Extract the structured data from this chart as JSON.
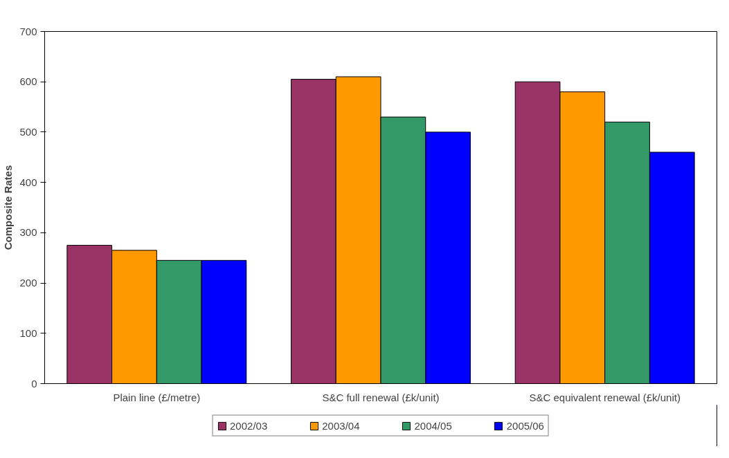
{
  "chart_data": {
    "type": "bar",
    "ylabel": "Composite Rates",
    "categories": [
      "Plain line (£/metre)",
      "S&C full renewal (£k/unit)",
      "S&C equivalent renewal (£k/unit)"
    ],
    "series": [
      {
        "name": "2002/03",
        "color": "#993366",
        "values": [
          275,
          605,
          600
        ]
      },
      {
        "name": "2003/04",
        "color": "#ff9900",
        "values": [
          265,
          610,
          580
        ]
      },
      {
        "name": "2004/05",
        "color": "#339966",
        "values": [
          245,
          530,
          520
        ]
      },
      {
        "name": "2005/06",
        "color": "#0000ff",
        "values": [
          245,
          500,
          460
        ]
      }
    ],
    "ylim": [
      0,
      700
    ],
    "yticks": [
      0,
      100,
      200,
      300,
      400,
      500,
      600,
      700
    ],
    "grid": false,
    "legend": "bottom"
  }
}
